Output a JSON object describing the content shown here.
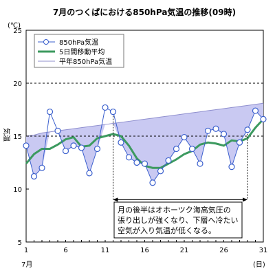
{
  "chart_data": {
    "type": "line",
    "title": "7月のつくばにおける850hPa気温の推移(09時)",
    "ylabel": "気温",
    "yunit": "(℃)",
    "xunit": "(日)",
    "xmonth": "7月",
    "ylim": [
      5,
      25
    ],
    "xlim": [
      1,
      31
    ],
    "yticks": [
      5,
      10,
      15,
      20,
      25
    ],
    "xticks": [
      1,
      6,
      11,
      16,
      21,
      26,
      31
    ],
    "grid": "dashed horizontal at 15, 20",
    "x": [
      1,
      2,
      3,
      4,
      5,
      6,
      7,
      8,
      9,
      10,
      11,
      12,
      13,
      14,
      15,
      16,
      17,
      18,
      19,
      20,
      21,
      22,
      23,
      24,
      25,
      26,
      27,
      28,
      29,
      30,
      31
    ],
    "series": [
      {
        "name": "850hPa気温",
        "style": "line-with-circle-markers",
        "color": "#3a5fcd",
        "values": [
          14.1,
          11.2,
          12.0,
          17.3,
          15.5,
          13.6,
          14.1,
          13.9,
          11.5,
          13.8,
          17.7,
          17.3,
          14.4,
          13.0,
          12.5,
          12.4,
          10.6,
          11.7,
          12.7,
          13.8,
          14.9,
          13.8,
          12.4,
          15.5,
          15.7,
          15.2,
          12.1,
          14.4,
          15.6,
          17.4,
          16.6
        ]
      },
      {
        "name": "5日間移動平均",
        "style": "thick-line",
        "color": "#3c9a5f",
        "values": [
          12.4,
          13.3,
          13.8,
          13.8,
          14.2,
          14.7,
          14.9,
          14.0,
          14.1,
          14.8,
          15.0,
          15.2,
          15.0,
          14.1,
          12.9,
          12.2,
          12.0,
          12.0,
          12.4,
          12.8,
          13.3,
          13.6,
          14.2,
          14.4,
          14.3,
          14.1,
          14.6,
          14.5,
          14.8,
          15.8,
          16.6
        ]
      },
      {
        "name": "平年850hPa気温",
        "style": "area-fill-to-observed",
        "color": "#8f8fce",
        "fill": "#c9c9f2",
        "values": [
          15.0,
          15.1,
          15.3,
          15.4,
          15.5,
          15.6,
          15.7,
          15.8,
          15.9,
          16.0,
          16.1,
          16.2,
          16.3,
          16.4,
          16.5,
          16.6,
          16.7,
          16.8,
          16.9,
          17.0,
          17.1,
          17.2,
          17.3,
          17.4,
          17.5,
          17.6,
          17.7,
          17.8,
          17.9,
          18.0,
          18.1
        ]
      }
    ],
    "annotation": {
      "text_lines": [
        "月の後半はオホーツク海高気圧の",
        "張り出しが強くなり、下層へ冷たい",
        "空気が入り気温が低くなる。"
      ],
      "range_start": 12,
      "range_end": 29,
      "y_level": 9
    }
  }
}
